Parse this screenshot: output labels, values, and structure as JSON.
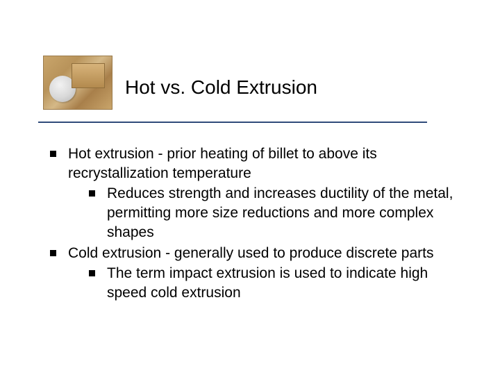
{
  "title": "Hot vs. Cold Extrusion",
  "colors": {
    "divider": "#2f4a7a",
    "text": "#000000",
    "bullet": "#000000",
    "background": "#ffffff"
  },
  "typography": {
    "title_fontsize": 28,
    "body_fontsize": 21,
    "font_family": "Arial"
  },
  "bullets": [
    {
      "text": "Hot extrusion - prior heating of billet to above its recrystallization temperature",
      "children": [
        {
          "text": "Reduces strength and increases ductility of the metal, permitting more size reductions and more complex shapes"
        }
      ]
    },
    {
      "text": "Cold extrusion - generally used to produce discrete parts",
      "children": [
        {
          "text": "The term impact extrusion is used to indicate high speed cold extrusion"
        }
      ]
    }
  ]
}
